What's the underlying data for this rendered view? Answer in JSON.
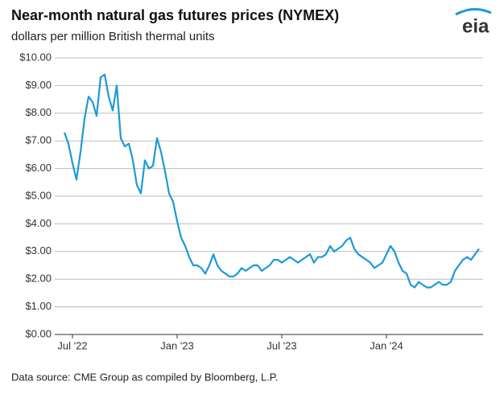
{
  "chart_data": {
    "type": "line",
    "title": "Near-month natural gas futures prices (NYMEX)",
    "subtitle": "dollars per million British thermal units",
    "source": "Data source: CME Group as compiled by Bloomberg, L.P.",
    "logo": "eia",
    "categories": [
      null,
      null,
      "Jul '22",
      null,
      null,
      null,
      null,
      null,
      null,
      null,
      null,
      null,
      null,
      null,
      null,
      null,
      null,
      null,
      null,
      null,
      null,
      null,
      null,
      null,
      null,
      null,
      null,
      null,
      "Jan '23",
      null,
      null,
      null,
      null,
      null,
      null,
      null,
      null,
      null,
      null,
      null,
      null,
      null,
      null,
      null,
      null,
      null,
      null,
      null,
      null,
      null,
      null,
      null,
      null,
      null,
      "Jul '23",
      null,
      null,
      null,
      null,
      null,
      null,
      null,
      null,
      null,
      null,
      null,
      null,
      null,
      null,
      null,
      null,
      null,
      null,
      null,
      null,
      null,
      null,
      null,
      null,
      null,
      "Jan '24",
      null,
      null,
      null,
      null,
      null,
      null,
      null,
      null,
      null,
      null,
      null,
      null,
      null,
      null,
      null,
      null,
      null,
      null,
      null,
      null,
      null,
      null,
      null
    ],
    "series": [
      {
        "name": "Near-month futures",
        "color": "#1b9ad6",
        "values": [
          7.3,
          6.9,
          6.2,
          5.6,
          6.6,
          7.8,
          8.6,
          8.4,
          7.9,
          9.3,
          9.4,
          8.6,
          8.1,
          9.0,
          7.1,
          6.8,
          6.9,
          6.3,
          5.4,
          5.1,
          6.3,
          6.0,
          6.1,
          7.1,
          6.6,
          5.9,
          5.1,
          4.8,
          4.1,
          3.5,
          3.2,
          2.8,
          2.5,
          2.5,
          2.4,
          2.2,
          2.5,
          2.9,
          2.5,
          2.3,
          2.2,
          2.1,
          2.1,
          2.2,
          2.4,
          2.3,
          2.4,
          2.5,
          2.5,
          2.3,
          2.4,
          2.5,
          2.7,
          2.7,
          2.6,
          2.7,
          2.8,
          2.7,
          2.6,
          2.7,
          2.8,
          2.9,
          2.6,
          2.8,
          2.8,
          2.9,
          3.2,
          3.0,
          3.1,
          3.2,
          3.4,
          3.5,
          3.1,
          2.9,
          2.8,
          2.7,
          2.6,
          2.4,
          2.5,
          2.6,
          2.9,
          3.2,
          3.0,
          2.6,
          2.3,
          2.2,
          1.8,
          1.7,
          1.9,
          1.8,
          1.7,
          1.7,
          1.8,
          1.9,
          1.8,
          1.8,
          1.9,
          2.3,
          2.5,
          2.7,
          2.8,
          2.7,
          2.9,
          3.1
        ]
      }
    ],
    "ylim": [
      0,
      10
    ],
    "yticks": [
      {
        "value": 0,
        "label": "$0.00"
      },
      {
        "value": 1,
        "label": "$1.00"
      },
      {
        "value": 2,
        "label": "$2.00"
      },
      {
        "value": 3,
        "label": "$3.00"
      },
      {
        "value": 4,
        "label": "$4.00"
      },
      {
        "value": 5,
        "label": "$5.00"
      },
      {
        "value": 6,
        "label": "$6.00"
      },
      {
        "value": 7,
        "label": "$7.00"
      },
      {
        "value": 8,
        "label": "$8.00"
      },
      {
        "value": 9,
        "label": "$9.00"
      },
      {
        "value": 10,
        "label": "$10.00"
      }
    ],
    "grid": true
  }
}
